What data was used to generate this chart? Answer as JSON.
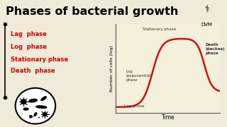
{
  "title": "Phases of bacterial growth",
  "title_fontsize": 11.5,
  "bg_color": "#f0ead8",
  "red_color": "#cc0000",
  "legend_items": [
    "Lag  phase",
    "Log  phase",
    "Stationary phase",
    "Death  phase"
  ],
  "curve_color": "#cc1111",
  "axis_bg": "#f5f0dc",
  "ylabel": "Number of cells (log)",
  "xlabel": "Time",
  "phase_labels": {
    "lag": "Lag phase",
    "log": "Log\n(exponential)\nphase",
    "stationary": "Stationary phase",
    "death": "Death\n(decline)\nphase"
  }
}
